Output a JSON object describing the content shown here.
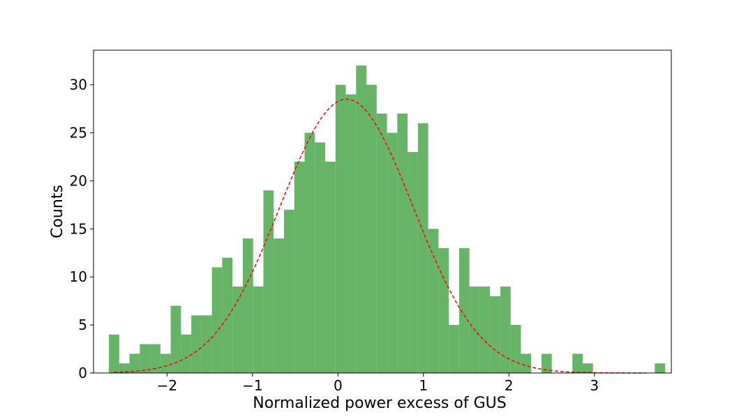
{
  "chart_data": {
    "type": "bar",
    "subtype": "histogram",
    "title": "",
    "xlabel": "Normalized power excess of GUS",
    "ylabel": "Counts",
    "xlim": [
      -2.86,
      3.9
    ],
    "ylim": [
      0,
      33.6
    ],
    "xticks": [
      -2,
      -1,
      0,
      1,
      2,
      3
    ],
    "xtick_labels": [
      "−2",
      "−1",
      "0",
      "1",
      "2",
      "3"
    ],
    "yticks": [
      0,
      5,
      10,
      15,
      20,
      25,
      30
    ],
    "ytick_labels": [
      "0",
      "5",
      "10",
      "15",
      "20",
      "25",
      "30"
    ],
    "bin_start": -2.68,
    "bin_width": 0.1205,
    "counts": [
      4,
      1,
      2,
      3,
      3,
      2,
      7,
      4,
      6,
      6,
      11,
      12,
      9,
      14,
      9,
      19,
      14,
      17,
      22,
      25,
      24,
      22,
      30,
      29,
      32,
      30,
      27,
      25,
      27,
      23,
      26,
      15,
      13,
      5,
      13,
      9,
      9,
      8,
      9,
      5,
      2,
      0,
      2,
      0,
      0,
      2,
      1,
      0,
      0,
      0,
      0,
      0,
      0,
      1
    ],
    "grid": false,
    "legend": "none",
    "colors": {
      "bars": "#4ca64c",
      "bars_opacity": 0.85,
      "fit_line": "#ff0000"
    },
    "fit": {
      "type": "gaussian",
      "style": "dashed",
      "amplitude": 28.5,
      "mean": 0.1,
      "sigma": 0.78,
      "x_range": [
        -2.62,
        3.6
      ]
    }
  }
}
